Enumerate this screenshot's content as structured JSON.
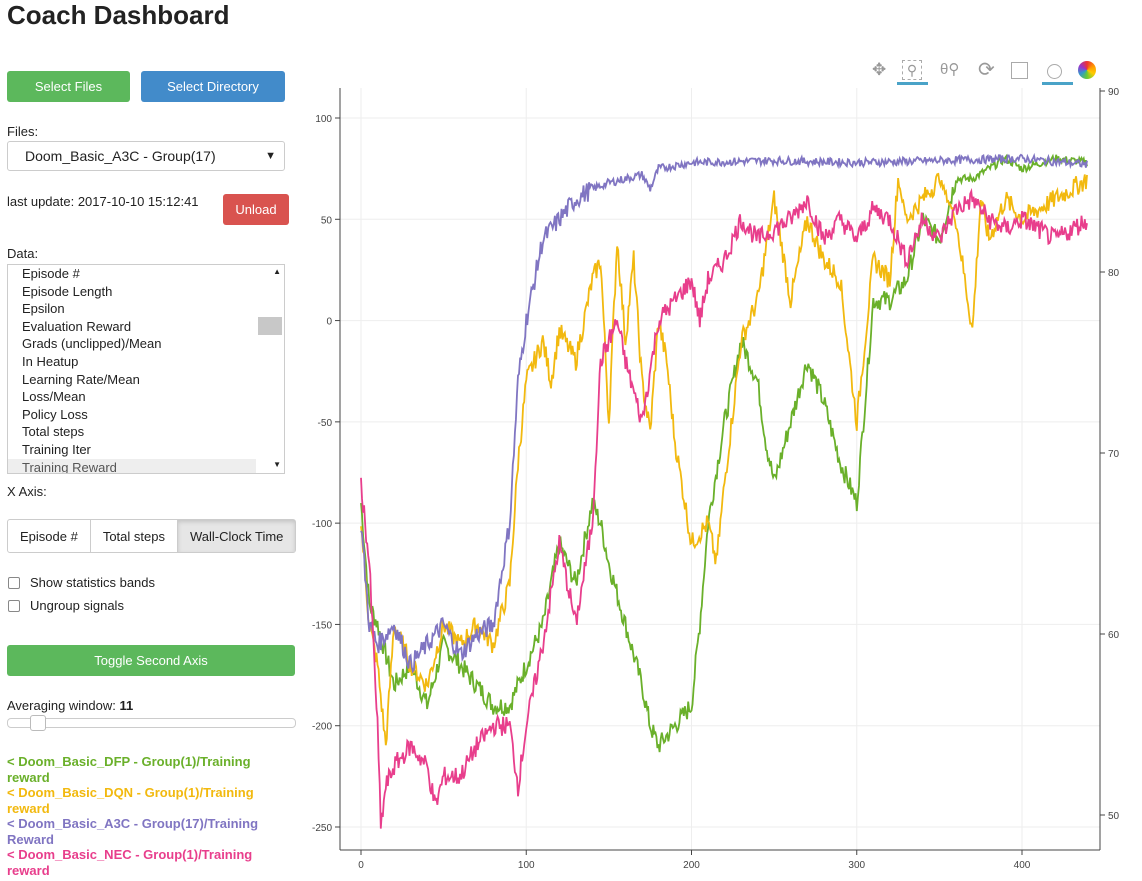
{
  "title": "Coach Dashboard",
  "buttons": {
    "select_files": "Select Files",
    "select_directory": "Select Directory",
    "unload": "Unload",
    "toggle_axis": "Toggle Second Axis"
  },
  "files_label": "Files:",
  "files_value": "Doom_Basic_A3C - Group(17)",
  "last_update": "last update: 2017-10-10 15:12:41",
  "data_label": "Data:",
  "data_items": [
    "Episode #",
    "Episode Length",
    "Epsilon",
    "Evaluation Reward",
    "Grads (unclipped)/Mean",
    "In Heatup",
    "Learning Rate/Mean",
    "Loss/Mean",
    "Policy Loss",
    "Total steps",
    "Training Iter",
    "Training Reward"
  ],
  "xaxis_label": "X Axis:",
  "xaxis_options": [
    "Episode #",
    "Total steps",
    "Wall-Clock Time"
  ],
  "xaxis_selected": "Wall-Clock Time",
  "checkboxes": [
    {
      "label": "Show statistics bands",
      "checked": false
    },
    {
      "label": "Ungroup signals",
      "checked": false
    }
  ],
  "averaging_label": "Averaging window:",
  "averaging_value": "11",
  "toolbar": [
    "pan-icon",
    "box-zoom-icon",
    "wheel-zoom-icon",
    "reset-icon",
    "save-icon",
    "hover-icon",
    "bokeh-logo-icon"
  ],
  "colors": {
    "green": "#6ab02a",
    "yellow": "#f2b90f",
    "purple": "#8075c2",
    "pink": "#e83e8c"
  },
  "chart_data": {
    "type": "line",
    "xlim": [
      -13,
      445
    ],
    "ylim": [
      -260,
      110
    ],
    "y2lim": [
      49,
      90.5
    ],
    "xticks": [
      0,
      100,
      200,
      300,
      400
    ],
    "yticks": [
      100,
      50,
      0,
      -50,
      -100,
      -150,
      -200,
      -250
    ],
    "y2ticks": [
      90,
      80,
      70,
      60,
      50
    ],
    "grid": true,
    "series": [
      {
        "name": "< Doom_Basic_DFP - Group(1)/Training reward",
        "color": "#6ab02a",
        "x": [
          0,
          5,
          10,
          20,
          30,
          40,
          50,
          60,
          70,
          80,
          90,
          100,
          110,
          120,
          130,
          140,
          145,
          150,
          160,
          170,
          175,
          180,
          190,
          200,
          205,
          210,
          220,
          230,
          240,
          245,
          250,
          260,
          270,
          280,
          290,
          300,
          310,
          320,
          330,
          340,
          350,
          360,
          370,
          380,
          390,
          400,
          420,
          440
        ],
        "y": [
          -90,
          -140,
          -150,
          -180,
          -170,
          -190,
          -160,
          -170,
          -180,
          -190,
          -190,
          -170,
          -150,
          -110,
          -130,
          -90,
          -100,
          -120,
          -150,
          -180,
          -200,
          -210,
          -200,
          -190,
          -150,
          -100,
          -50,
          -10,
          -30,
          -60,
          -80,
          -50,
          -20,
          -40,
          -70,
          -90,
          10,
          10,
          20,
          50,
          40,
          70,
          70,
          75,
          80,
          75,
          80,
          78
        ]
      },
      {
        "name": "< Doom_Basic_DQN - Group(1)/Training reward",
        "color": "#f2b90f",
        "x": [
          0,
          5,
          10,
          15,
          20,
          30,
          40,
          50,
          60,
          70,
          80,
          90,
          95,
          100,
          105,
          110,
          115,
          120,
          130,
          140,
          145,
          150,
          155,
          160,
          165,
          170,
          175,
          180,
          185,
          190,
          200,
          210,
          215,
          220,
          230,
          240,
          250,
          260,
          270,
          280,
          290,
          300,
          310,
          320,
          325,
          330,
          340,
          350,
          360,
          370,
          375,
          380,
          390,
          400,
          420,
          440
        ],
        "y": [
          -100,
          -150,
          -170,
          -210,
          -150,
          -170,
          -180,
          -150,
          -160,
          -150,
          -160,
          -130,
          -70,
          -30,
          -20,
          -10,
          -30,
          -5,
          -20,
          20,
          30,
          -50,
          40,
          -10,
          30,
          -30,
          -55,
          0,
          -20,
          -60,
          -110,
          -100,
          -120,
          -80,
          -10,
          10,
          60,
          10,
          50,
          30,
          20,
          -50,
          30,
          20,
          70,
          50,
          60,
          70,
          50,
          -5,
          60,
          40,
          60,
          50,
          60,
          70
        ]
      },
      {
        "name": "< Doom_Basic_A3C - Group(17)/Training Reward",
        "color": "#8075c2",
        "x": [
          0,
          5,
          10,
          20,
          30,
          40,
          50,
          60,
          70,
          80,
          90,
          95,
          100,
          105,
          110,
          120,
          130,
          140,
          150,
          160,
          170,
          175,
          180,
          200,
          250,
          300,
          350,
          400,
          440
        ],
        "y": [
          -100,
          -150,
          -160,
          -150,
          -170,
          -160,
          -150,
          -165,
          -155,
          -150,
          -100,
          -30,
          0,
          20,
          40,
          50,
          60,
          65,
          68,
          70,
          72,
          65,
          75,
          78,
          79,
          78,
          79,
          80,
          77
        ]
      },
      {
        "name": "< Doom_Basic_NEC - Group(1)/Training reward",
        "color": "#e83e8c",
        "x": [
          0,
          5,
          10,
          12,
          15,
          20,
          30,
          40,
          45,
          50,
          60,
          70,
          80,
          90,
          95,
          100,
          110,
          120,
          130,
          140,
          145,
          150,
          155,
          160,
          170,
          180,
          190,
          200,
          205,
          210,
          220,
          230,
          240,
          250,
          260,
          270,
          280,
          290,
          300,
          310,
          320,
          330,
          340,
          350,
          360,
          370,
          380,
          390,
          400,
          420,
          440
        ],
        "y": [
          -80,
          -120,
          -200,
          -250,
          -230,
          -220,
          -210,
          -220,
          -240,
          -225,
          -225,
          -210,
          -200,
          -200,
          -230,
          -200,
          -160,
          -110,
          -150,
          -100,
          -20,
          -10,
          0,
          -20,
          -50,
          0,
          10,
          20,
          0,
          20,
          30,
          50,
          40,
          45,
          50,
          60,
          40,
          50,
          40,
          55,
          50,
          30,
          50,
          40,
          55,
          60,
          50,
          45,
          50,
          40,
          50
        ]
      }
    ]
  }
}
